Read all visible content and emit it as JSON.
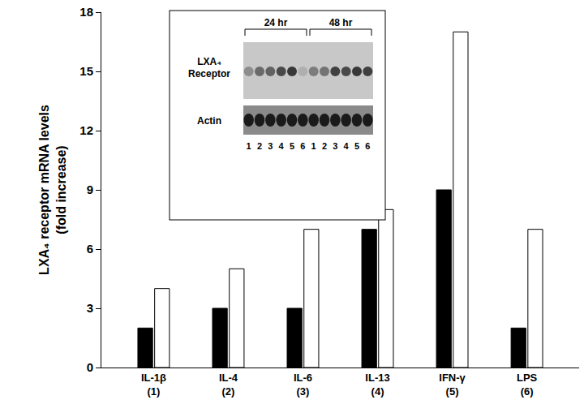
{
  "chart_data": {
    "type": "bar",
    "y_label": "LXA₄ receptor mRNA levels (fold increase)",
    "categories": [
      "IL-1β (1)",
      "IL-4 (2)",
      "IL-6 (3)",
      "IL-13 (4)",
      "IFN-γ (5)",
      "LPS (6)"
    ],
    "series": [
      {
        "name": "24 hr",
        "color": "#000000",
        "values": [
          2,
          3,
          3,
          7,
          9,
          2
        ]
      },
      {
        "name": "48 hr",
        "color": "#ffffff",
        "values": [
          4,
          5,
          7,
          8,
          17,
          7
        ]
      }
    ],
    "ylim": [
      0,
      18
    ],
    "yticks": [
      0,
      3,
      6,
      9,
      12,
      15,
      18
    ],
    "grid": false,
    "inset": {
      "row_labels": [
        "LXA₄ Receptor",
        "Actin"
      ],
      "lanes": [
        "1",
        "2",
        "3",
        "4",
        "5",
        "6"
      ]
    }
  }
}
